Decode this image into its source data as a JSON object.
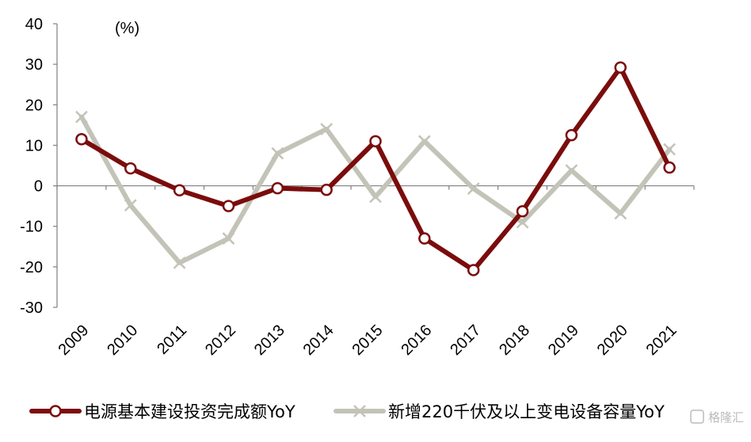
{
  "chart_data": {
    "type": "line",
    "unit": "(%)",
    "categories": [
      "2009",
      "2010",
      "2011",
      "2012",
      "2013",
      "2014",
      "2015",
      "2016",
      "2017",
      "2018",
      "2019",
      "2020",
      "2021"
    ],
    "ylim": [
      -30,
      40
    ],
    "yticks": [
      -30,
      -20,
      -10,
      0,
      10,
      20,
      30,
      40
    ],
    "grid": false,
    "legend_position": "bottom",
    "series": [
      {
        "name": "电源基本建设投资完成额YoY",
        "color": "#7b0c0c",
        "marker": "circle",
        "values": [
          11.5,
          4.3,
          -1.1,
          -5.0,
          -0.6,
          -1.0,
          11.0,
          -13.0,
          -20.8,
          -6.3,
          12.5,
          29.2,
          4.5
        ]
      },
      {
        "name": "新增220千伏及以上变电设备容量YoY",
        "color": "#c3c3b8",
        "marker": "x",
        "values": [
          17.0,
          -4.8,
          -19.0,
          -13.0,
          8.0,
          14.0,
          -2.7,
          11.0,
          -0.7,
          -9.0,
          3.8,
          -6.8,
          9.0
        ]
      }
    ]
  },
  "watermark": "格隆汇"
}
